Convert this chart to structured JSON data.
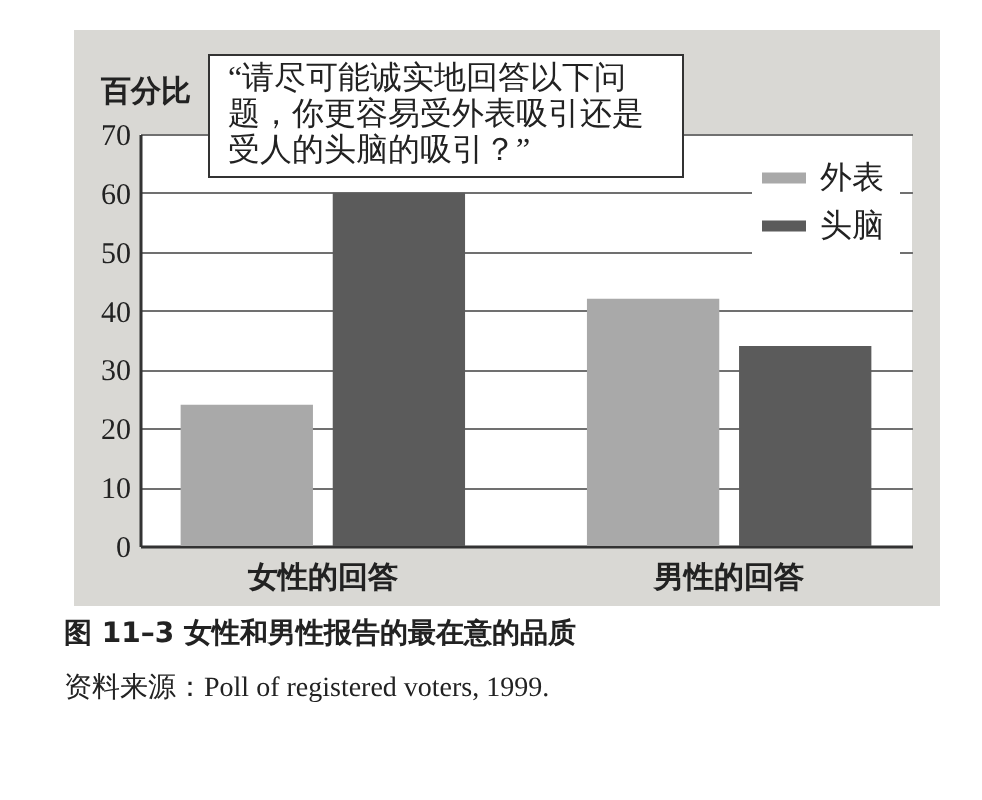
{
  "chart_data": {
    "type": "bar",
    "title": "图 11–3 女性和男性报告的最在意的品质",
    "ylabel": "百分比",
    "annotations": [
      "“请尽可能诚实地回答以下问题，你更容易受外表吸引还是受人的头脑的吸引？”",
      "资料来源：Poll of registered voters, 1999."
    ],
    "categories": [
      "女性的回答",
      "男性的回答"
    ],
    "series": [
      {
        "name": "外表",
        "color": "#a9a9a9",
        "values": [
          24,
          42
        ]
      },
      {
        "name": "头脑",
        "color": "#5b5b5b",
        "values": [
          60,
          34
        ]
      }
    ],
    "ylim": [
      0,
      70
    ],
    "yticks": [
      0,
      10,
      20,
      30,
      40,
      50,
      60,
      70
    ],
    "grid": "y",
    "legend": "top right"
  }
}
